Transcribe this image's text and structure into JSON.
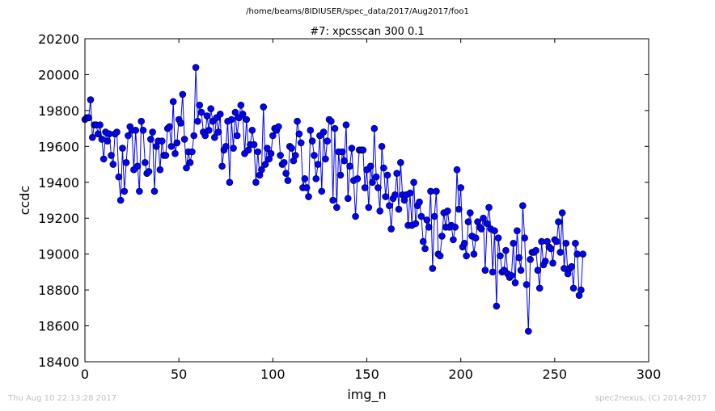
{
  "suptitle": "/home/beams/8IDIUSER/spec_data/2017/Aug2017/foo1",
  "footer": {
    "timestamp": "Thu Aug 10 22:13:28 2017",
    "credit": "spec2nexus, (C) 2014-2017"
  },
  "chart_data": {
    "type": "line",
    "title": "#7: xpcsscan 300 0.1",
    "xlabel": "img_n",
    "ylabel": "ccdc",
    "xlim": [
      0,
      300
    ],
    "ylim": [
      18400,
      20200
    ],
    "xticks": [
      0,
      50,
      100,
      150,
      200,
      250,
      300
    ],
    "yticks": [
      18400,
      18600,
      18800,
      19000,
      19200,
      19400,
      19600,
      19800,
      20000,
      20200
    ],
    "grid": false,
    "line_color": "#0000ff",
    "marker": "circle",
    "x_start": 0,
    "x_step": 1,
    "series": [
      {
        "values": [
          19750,
          19760,
          19760,
          19860,
          19650,
          19720,
          19720,
          19670,
          19720,
          19640,
          19530,
          19680,
          19630,
          19670,
          19550,
          19500,
          19670,
          19680,
          19430,
          19300,
          19590,
          19350,
          19510,
          19660,
          19710,
          19690,
          19470,
          19690,
          19490,
          19350,
          19740,
          19690,
          19510,
          19450,
          19460,
          19640,
          19680,
          19350,
          19600,
          19630,
          19470,
          19630,
          19550,
          19550,
          19700,
          19710,
          19600,
          19850,
          19560,
          19620,
          19750,
          19730,
          19890,
          19640,
          19480,
          19570,
          19510,
          19570,
          19660,
          20040,
          19740,
          19830,
          19790,
          19680,
          19660,
          19770,
          19690,
          19810,
          19740,
          19650,
          19760,
          19680,
          19780,
          19490,
          19580,
          19600,
          19740,
          19400,
          19750,
          19590,
          19790,
          19660,
          19760,
          19830,
          19780,
          19560,
          19750,
          19580,
          19610,
          19690,
          19610,
          19400,
          19570,
          19440,
          19470,
          19820,
          19500,
          19590,
          19530,
          19560,
          19660,
          19700,
          19690,
          19710,
          19550,
          19500,
          19510,
          19450,
          19410,
          19600,
          19590,
          19520,
          19550,
          19740,
          19670,
          19620,
          19370,
          19420,
          19370,
          19320,
          19690,
          19630,
          19550,
          19420,
          19500,
          19660,
          19350,
          19680,
          19530,
          19630,
          19750,
          19740,
          19300,
          19700,
          19260,
          19570,
          19440,
          19570,
          19520,
          19720,
          19310,
          19490,
          19590,
          19410,
          19210,
          19420,
          19580,
          19580,
          19580,
          19370,
          19470,
          19260,
          19490,
          19400,
          19700,
          19430,
          19370,
          19240,
          19600,
          19480,
          19320,
          19440,
          19270,
          19140,
          19310,
          19330,
          19450,
          19250,
          19510,
          19330,
          19300,
          19330,
          19160,
          19340,
          19160,
          19400,
          19170,
          19270,
          19290,
          19210,
          19070,
          19030,
          19190,
          19150,
          19350,
          18920,
          19210,
          19350,
          19000,
          18990,
          19100,
          19230,
          19150,
          19240,
          19150,
          19160,
          19080,
          19150,
          19470,
          19250,
          19370,
          19040,
          19060,
          18990,
          19180,
          19230,
          19100,
          19000,
          19090,
          19180,
          19150,
          19140,
          19200,
          18910,
          19170,
          19260,
          19140,
          18900,
          19130,
          18710,
          19090,
          18990,
          18900,
          18910,
          19020,
          18890,
          18870,
          18880,
          19060,
          18840,
          19130,
          18980,
          18910,
          19270,
          19090,
          18830,
          18570,
          18970,
          19010,
          19010,
          19020,
          18910,
          18810,
          19070,
          18940,
          18960,
          19070,
          19040,
          19030,
          18950,
          19080,
          19070,
          19180,
          19010,
          19230,
          18920,
          19060,
          18890,
          18920,
          18930,
          18810,
          19060,
          19000,
          18770,
          18800,
          19000
        ]
      }
    ]
  }
}
